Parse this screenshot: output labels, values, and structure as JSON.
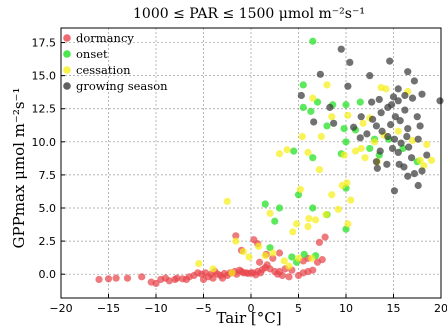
{
  "chart_data": {
    "type": "scatter",
    "title": "1000 ≤ PAR ≤ 1500 μmol m⁻²s⁻¹",
    "xlabel": "Tair [°C]",
    "ylabel": "GPPmax μmol m⁻²s⁻¹",
    "xlim": [
      -20,
      20
    ],
    "ylim": [
      -1.8,
      18.6
    ],
    "xticks": [
      -20,
      -15,
      -10,
      -5,
      0,
      5,
      10,
      15,
      20
    ],
    "yticks": [
      0.0,
      2.5,
      5.0,
      7.5,
      10.0,
      12.5,
      15.0,
      17.5
    ],
    "xtick_labels": [
      "−20",
      "−15",
      "−10",
      "−5",
      "0",
      "5",
      "10",
      "15",
      "20"
    ],
    "ytick_labels": [
      "0.0",
      "2.5",
      "5.0",
      "7.5",
      "10.0",
      "12.5",
      "15.0",
      "17.5"
    ],
    "grid": true,
    "legend_position": "top-left",
    "series": [
      {
        "name": "dormancy",
        "color": "#e8474c",
        "points": [
          [
            -16,
            -0.4
          ],
          [
            -15,
            -0.35
          ],
          [
            -14.2,
            -0.3
          ],
          [
            -13,
            -0.3
          ],
          [
            -11.5,
            -0.2
          ],
          [
            -10.5,
            -0.6
          ],
          [
            -10,
            -0.7
          ],
          [
            -9.5,
            -0.4
          ],
          [
            -9,
            -0.3
          ],
          [
            -8.6,
            -0.5
          ],
          [
            -8,
            -0.4
          ],
          [
            -7.8,
            -0.3
          ],
          [
            -7.2,
            -0.35
          ],
          [
            -6.8,
            -0.4
          ],
          [
            -6.5,
            -0.2
          ],
          [
            -6,
            -0.1
          ],
          [
            -5.6,
            0.1
          ],
          [
            -5.2,
            0.0
          ],
          [
            -5,
            -0.4
          ],
          [
            -4.8,
            0.1
          ],
          [
            -4.5,
            -0.2
          ],
          [
            -4.2,
            0.0
          ],
          [
            -4,
            -0.3
          ],
          [
            -3.8,
            0.2
          ],
          [
            -3.5,
            0.0
          ],
          [
            -3.2,
            -0.1
          ],
          [
            -3,
            -0.3
          ],
          [
            -2.8,
            0.05
          ],
          [
            -2.5,
            -0.1
          ],
          [
            -2.2,
            0.1
          ],
          [
            -2,
            0.1
          ],
          [
            -1.7,
            0.2
          ],
          [
            -1.5,
            0.0
          ],
          [
            -1.2,
            0.3
          ],
          [
            -1,
            0.2
          ],
          [
            -0.8,
            0.1
          ],
          [
            -0.5,
            0.1
          ],
          [
            -0.3,
            0.05
          ],
          [
            0,
            0.1
          ],
          [
            0.2,
            0.1
          ],
          [
            0.5,
            -0.05
          ],
          [
            0.7,
            0.2
          ],
          [
            1,
            0.1
          ],
          [
            1.2,
            0.35
          ],
          [
            1.5,
            0.5
          ],
          [
            1.7,
            0.7
          ],
          [
            2,
            0.4
          ],
          [
            2.3,
            1.2
          ],
          [
            2.5,
            0.2
          ],
          [
            2.8,
            0.0
          ],
          [
            3,
            0.2
          ],
          [
            3.3,
            -0.1
          ],
          [
            3.6,
            0.4
          ],
          [
            4,
            -0.2
          ],
          [
            4.3,
            0.3
          ],
          [
            5,
            -0.1
          ],
          [
            5.5,
            0.1
          ],
          [
            6,
            0.2
          ],
          [
            6.5,
            0.3
          ],
          [
            7,
            0.9
          ],
          [
            7.5,
            1.1
          ],
          [
            7.2,
            2.4
          ],
          [
            7.8,
            2.8
          ],
          [
            -1.6,
            2.9
          ],
          [
            -1,
            1.8
          ],
          [
            0.3,
            2.6
          ],
          [
            0.7,
            2.3
          ],
          [
            3,
            1.6
          ],
          [
            5.5,
            1.0
          ],
          [
            6,
            1.2
          ],
          [
            0.9,
            0.9
          ],
          [
            1.6,
            1.5
          ]
        ]
      },
      {
        "name": "onset",
        "color": "#1fe01f",
        "points": [
          [
            6.5,
            17.6
          ],
          [
            5.5,
            14.3
          ],
          [
            7,
            13.0
          ],
          [
            8.6,
            12.8
          ],
          [
            10,
            12.8
          ],
          [
            11.5,
            13.0
          ],
          [
            5.5,
            12.6
          ],
          [
            6.3,
            12.3
          ],
          [
            9.8,
            11.0
          ],
          [
            8,
            11.2
          ],
          [
            11,
            10.9
          ],
          [
            13,
            10.2
          ],
          [
            14.5,
            10.2
          ],
          [
            16,
            9.5
          ],
          [
            17.5,
            8.5
          ],
          [
            10,
            10.0
          ],
          [
            12.5,
            9.5
          ],
          [
            13.5,
            9.0
          ],
          [
            9.5,
            9.1
          ],
          [
            4.5,
            9.3
          ],
          [
            6.5,
            8.8
          ],
          [
            10,
            6.5
          ],
          [
            5,
            6.0
          ],
          [
            1.5,
            5.3
          ],
          [
            3,
            5.0
          ],
          [
            6.5,
            5.0
          ],
          [
            2.5,
            4.0
          ],
          [
            10,
            3.4
          ],
          [
            5.6,
            1.5
          ],
          [
            4.3,
            1.3
          ],
          [
            6.8,
            1.4
          ],
          [
            4.8,
            0.9
          ],
          [
            2,
            2.0
          ],
          [
            8,
            4.5
          ]
        ]
      },
      {
        "name": "cessation",
        "color": "#f7ef1a",
        "points": [
          [
            8,
            14.3
          ],
          [
            13.7,
            14.1
          ],
          [
            14.2,
            14.0
          ],
          [
            16.5,
            13.8
          ],
          [
            6.5,
            13.3
          ],
          [
            8.5,
            11.9
          ],
          [
            10.2,
            12.0
          ],
          [
            11.8,
            11.4
          ],
          [
            12.5,
            11.8
          ],
          [
            13,
            10.0
          ],
          [
            14,
            10.5
          ],
          [
            15.5,
            10.8
          ],
          [
            17,
            10.1
          ],
          [
            18.5,
            9.8
          ],
          [
            19,
            8.6
          ],
          [
            7.4,
            10.4
          ],
          [
            5.4,
            10.4
          ],
          [
            3.8,
            9.4
          ],
          [
            3,
            9.1
          ],
          [
            6,
            9.2
          ],
          [
            9.8,
            9.0
          ],
          [
            11,
            9.3
          ],
          [
            11.6,
            9.5
          ],
          [
            12,
            8.8
          ],
          [
            13.3,
            8.5
          ],
          [
            17.8,
            8.6
          ],
          [
            18.2,
            8.2
          ],
          [
            7.2,
            7.9
          ],
          [
            10.1,
            6.9
          ],
          [
            9.6,
            6.7
          ],
          [
            5.2,
            6.4
          ],
          [
            -2.5,
            5.5
          ],
          [
            2,
            4.6
          ],
          [
            4.8,
            3.8
          ],
          [
            6,
            3.6
          ],
          [
            6.1,
            4.2
          ],
          [
            9.2,
            4.9
          ],
          [
            7.9,
            4.5
          ],
          [
            -1.6,
            2.5
          ],
          [
            -0.8,
            1.7
          ],
          [
            -0.2,
            1.3
          ],
          [
            0.8,
            2.1
          ],
          [
            1.5,
            1.4
          ],
          [
            2.3,
            1.6
          ],
          [
            3.5,
            1.0
          ],
          [
            4,
            0.6
          ],
          [
            5,
            1.2
          ],
          [
            6.4,
            1.2
          ],
          [
            -5.5,
            0.8
          ],
          [
            -4,
            0.4
          ],
          [
            -2,
            0.1
          ],
          [
            10.2,
            3.8
          ],
          [
            8.5,
            6.0
          ],
          [
            6.8,
            4.1
          ],
          [
            10.5,
            5.6
          ],
          [
            4.4,
            3.2
          ]
        ]
      },
      {
        "name": "growing season",
        "color": "#3a3a3a",
        "points": [
          [
            9.5,
            17.0
          ],
          [
            10.4,
            16.0
          ],
          [
            14.6,
            16.1
          ],
          [
            16.5,
            15.3
          ],
          [
            12.5,
            15.0
          ],
          [
            10.2,
            14.2
          ],
          [
            15.5,
            14.0
          ],
          [
            17.2,
            14.6
          ],
          [
            18,
            13.6
          ],
          [
            15,
            13.4
          ],
          [
            16.2,
            13.5
          ],
          [
            15.5,
            13.1
          ],
          [
            17,
            13.3
          ],
          [
            13.5,
            13.2
          ],
          [
            12.7,
            13.0
          ],
          [
            14.4,
            12.6
          ],
          [
            14.8,
            12.8
          ],
          [
            13.7,
            12.2
          ],
          [
            16.2,
            12.4
          ],
          [
            17.5,
            11.9
          ],
          [
            12.8,
            11.7
          ],
          [
            13.2,
            11.2
          ],
          [
            14.7,
            11.3
          ],
          [
            15.7,
            11.6
          ],
          [
            16.5,
            11.0
          ],
          [
            17.8,
            11.2
          ],
          [
            13.8,
            10.8
          ],
          [
            14.4,
            10.4
          ],
          [
            15.1,
            10.2
          ],
          [
            15.8,
            9.9
          ],
          [
            16.4,
            10.4
          ],
          [
            17.6,
            10.2
          ],
          [
            12.2,
            10.6
          ],
          [
            14.9,
            9.5
          ],
          [
            16.6,
            9.6
          ],
          [
            15.5,
            9.2
          ],
          [
            16.9,
            8.8
          ],
          [
            18.5,
            9.0
          ],
          [
            14.3,
            8.3
          ],
          [
            13.3,
            8.0
          ],
          [
            15.6,
            8.3
          ],
          [
            17.2,
            7.6
          ],
          [
            18,
            7.8
          ],
          [
            16.5,
            7.4
          ],
          [
            13.2,
            8.5
          ],
          [
            15.1,
            6.3
          ],
          [
            17.6,
            6.7
          ],
          [
            20,
            13.1
          ],
          [
            10.8,
            11.1
          ],
          [
            11.5,
            10.3
          ],
          [
            8.7,
            11.4
          ],
          [
            6.6,
            11.5
          ],
          [
            8.3,
            12.6
          ],
          [
            5.3,
            13.5
          ],
          [
            7.3,
            15.1
          ],
          [
            11.6,
            11.9
          ],
          [
            15.2,
            11.9
          ],
          [
            13.6,
            9.3
          ],
          [
            16.1,
            8.1
          ]
        ]
      }
    ]
  }
}
